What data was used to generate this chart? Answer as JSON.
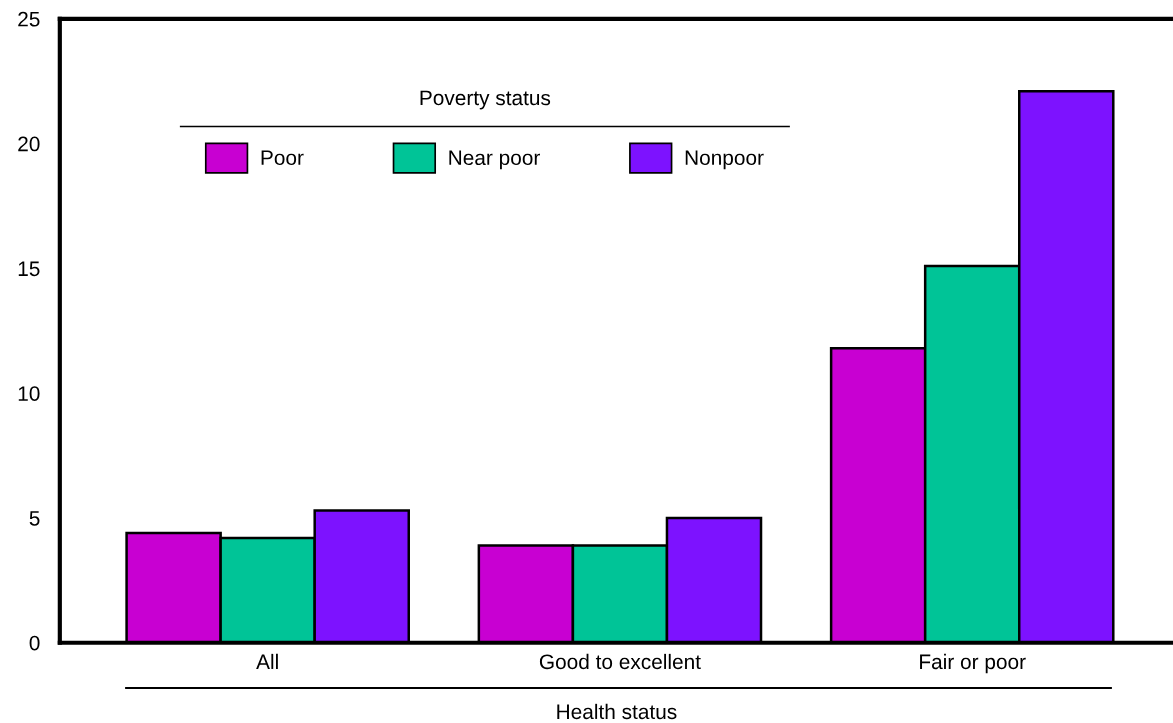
{
  "chart_data": {
    "type": "bar",
    "xlabel": "Health status",
    "legend_title": "Poverty status",
    "categories": [
      "All",
      "Good to excellent",
      "Fair or poor"
    ],
    "series": [
      {
        "name": "Poor",
        "color": "#c800d2",
        "values": [
          4.4,
          3.9,
          11.8
        ]
      },
      {
        "name": "Near poor",
        "color": "#00c497",
        "values": [
          4.2,
          3.9,
          15.1
        ]
      },
      {
        "name": "Nonpoor",
        "color": "#7d12ff",
        "values": [
          5.3,
          5.0,
          22.1
        ]
      }
    ],
    "ylim": [
      0,
      25
    ],
    "yticks": [
      0,
      5,
      10,
      15,
      20,
      25
    ],
    "grid": false,
    "legend": "top left"
  }
}
